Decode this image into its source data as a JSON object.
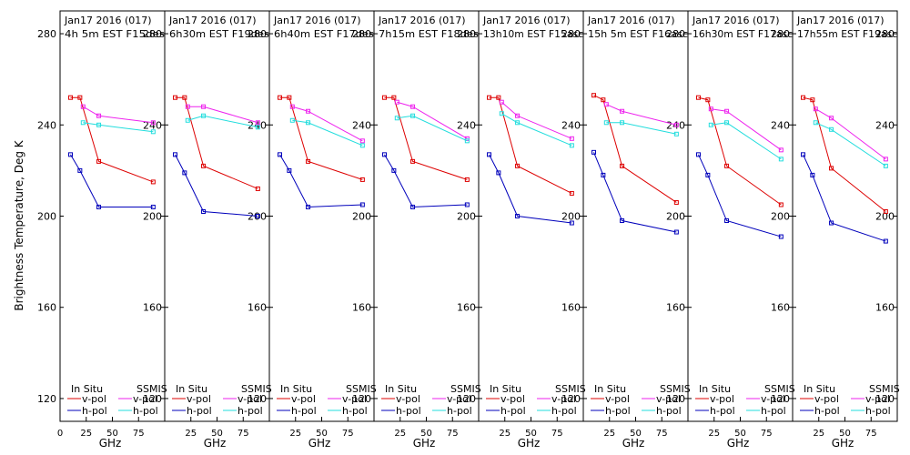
{
  "ylabel": "Brightness Temperature, Deg K",
  "xlabel": "GHz",
  "yticks": [
    120,
    160,
    200,
    240,
    280
  ],
  "xticks": [
    0,
    25,
    50,
    75,
    100
  ],
  "legend": {
    "left_title": "In Situ",
    "right_title": "SSMIS",
    "vpol": "v-pol",
    "hpol": "h-pol"
  },
  "colors": {
    "insitu_v": "#dd0000",
    "insitu_h": "#0000bb",
    "ssmis_v": "#ee22ee",
    "ssmis_h": "#22dddd"
  },
  "chart_data": [
    {
      "type": "line",
      "title": "Jan17 2016 (017)",
      "subtitle": "4h 5m EST F15des",
      "xlabel": "GHz",
      "ylabel": "Brightness Temperature, Deg K",
      "xlim": [
        0,
        100
      ],
      "ylim": [
        110,
        290
      ],
      "series": [
        {
          "name": "In Situ v-pol",
          "x": [
            10,
            19,
            37,
            89
          ],
          "y": [
            252,
            252,
            224,
            215
          ]
        },
        {
          "name": "In Situ h-pol",
          "x": [
            10,
            19,
            37,
            89
          ],
          "y": [
            227,
            220,
            204,
            204
          ]
        },
        {
          "name": "SSMIS v-pol",
          "x": [
            22,
            37,
            89
          ],
          "y": [
            248,
            244,
            241
          ]
        },
        {
          "name": "SSMIS h-pol",
          "x": [
            22,
            37,
            89
          ],
          "y": [
            241,
            240,
            237
          ]
        }
      ]
    },
    {
      "type": "line",
      "title": "Jan17 2016 (017)",
      "subtitle": "6h30m EST F19des",
      "xlabel": "GHz",
      "ylabel": "Brightness Temperature, Deg K",
      "xlim": [
        0,
        100
      ],
      "ylim": [
        110,
        290
      ],
      "series": [
        {
          "name": "In Situ v-pol",
          "x": [
            10,
            19,
            37,
            89
          ],
          "y": [
            252,
            252,
            222,
            212
          ]
        },
        {
          "name": "In Situ h-pol",
          "x": [
            10,
            19,
            37,
            89
          ],
          "y": [
            227,
            219,
            202,
            200
          ]
        },
        {
          "name": "SSMIS v-pol",
          "x": [
            22,
            37,
            89
          ],
          "y": [
            248,
            248,
            241
          ]
        },
        {
          "name": "SSMIS h-pol",
          "x": [
            22,
            37,
            89
          ],
          "y": [
            242,
            244,
            239
          ]
        }
      ]
    },
    {
      "type": "line",
      "title": "Jan17 2016 (017)",
      "subtitle": "6h40m EST F17des",
      "xlabel": "GHz",
      "ylabel": "Brightness Temperature, Deg K",
      "xlim": [
        0,
        100
      ],
      "ylim": [
        110,
        290
      ],
      "series": [
        {
          "name": "In Situ v-pol",
          "x": [
            10,
            19,
            37,
            89
          ],
          "y": [
            252,
            252,
            224,
            216
          ]
        },
        {
          "name": "In Situ h-pol",
          "x": [
            10,
            19,
            37,
            89
          ],
          "y": [
            227,
            220,
            204,
            205
          ]
        },
        {
          "name": "SSMIS v-pol",
          "x": [
            22,
            37,
            89
          ],
          "y": [
            248,
            246,
            233
          ]
        },
        {
          "name": "SSMIS h-pol",
          "x": [
            22,
            37,
            89
          ],
          "y": [
            242,
            241,
            231
          ]
        }
      ]
    },
    {
      "type": "line",
      "title": "Jan17 2016 (017)",
      "subtitle": "7h15m EST F18des",
      "xlabel": "GHz",
      "ylabel": "Brightness Temperature, Deg K",
      "xlim": [
        0,
        100
      ],
      "ylim": [
        110,
        290
      ],
      "series": [
        {
          "name": "In Situ v-pol",
          "x": [
            10,
            19,
            37,
            89
          ],
          "y": [
            252,
            252,
            224,
            216
          ]
        },
        {
          "name": "In Situ h-pol",
          "x": [
            10,
            19,
            37,
            89
          ],
          "y": [
            227,
            220,
            204,
            205
          ]
        },
        {
          "name": "SSMIS v-pol",
          "x": [
            22,
            37,
            89
          ],
          "y": [
            250,
            248,
            234
          ]
        },
        {
          "name": "SSMIS h-pol",
          "x": [
            22,
            37,
            89
          ],
          "y": [
            243,
            244,
            233
          ]
        }
      ]
    },
    {
      "type": "line",
      "title": "Jan17 2016 (017)",
      "subtitle": "13h10m EST F15asc",
      "xlabel": "GHz",
      "ylabel": "Brightness Temperature, Deg K",
      "xlim": [
        0,
        100
      ],
      "ylim": [
        110,
        290
      ],
      "series": [
        {
          "name": "In Situ v-pol",
          "x": [
            10,
            19,
            37,
            89
          ],
          "y": [
            252,
            252,
            222,
            210
          ]
        },
        {
          "name": "In Situ h-pol",
          "x": [
            10,
            19,
            37,
            89
          ],
          "y": [
            227,
            219,
            200,
            197
          ]
        },
        {
          "name": "SSMIS v-pol",
          "x": [
            22,
            37,
            89
          ],
          "y": [
            250,
            244,
            234
          ]
        },
        {
          "name": "SSMIS h-pol",
          "x": [
            22,
            37,
            89
          ],
          "y": [
            245,
            241,
            231
          ]
        }
      ]
    },
    {
      "type": "line",
      "title": "Jan17 2016 (017)",
      "subtitle": "15h 5m EST F16asc",
      "xlabel": "GHz",
      "ylabel": "Brightness Temperature, Deg K",
      "xlim": [
        0,
        100
      ],
      "ylim": [
        110,
        290
      ],
      "series": [
        {
          "name": "In Situ v-pol",
          "x": [
            10,
            19,
            37,
            89
          ],
          "y": [
            253,
            251,
            222,
            206
          ]
        },
        {
          "name": "In Situ h-pol",
          "x": [
            10,
            19,
            37,
            89
          ],
          "y": [
            228,
            218,
            198,
            193
          ]
        },
        {
          "name": "SSMIS v-pol",
          "x": [
            22,
            37,
            89
          ],
          "y": [
            249,
            246,
            240
          ]
        },
        {
          "name": "SSMIS h-pol",
          "x": [
            22,
            37,
            89
          ],
          "y": [
            241,
            241,
            236
          ]
        }
      ]
    },
    {
      "type": "line",
      "title": "Jan17 2016 (017)",
      "subtitle": "16h30m EST F17asc",
      "xlabel": "GHz",
      "ylabel": "Brightness Temperature, Deg K",
      "xlim": [
        0,
        100
      ],
      "ylim": [
        110,
        290
      ],
      "series": [
        {
          "name": "In Situ v-pol",
          "x": [
            10,
            19,
            37,
            89
          ],
          "y": [
            252,
            251,
            222,
            205
          ]
        },
        {
          "name": "In Situ h-pol",
          "x": [
            10,
            19,
            37,
            89
          ],
          "y": [
            227,
            218,
            198,
            191
          ]
        },
        {
          "name": "SSMIS v-pol",
          "x": [
            22,
            37,
            89
          ],
          "y": [
            247,
            246,
            229
          ]
        },
        {
          "name": "SSMIS h-pol",
          "x": [
            22,
            37,
            89
          ],
          "y": [
            240,
            241,
            225
          ]
        }
      ]
    },
    {
      "type": "line",
      "title": "Jan17 2016 (017)",
      "subtitle": "17h55m EST F19asc",
      "xlabel": "GHz",
      "ylabel": "Brightness Temperature, Deg K",
      "xlim": [
        0,
        100
      ],
      "ylim": [
        110,
        290
      ],
      "series": [
        {
          "name": "In Situ v-pol",
          "x": [
            10,
            19,
            37,
            89
          ],
          "y": [
            252,
            251,
            221,
            202
          ]
        },
        {
          "name": "In Situ h-pol",
          "x": [
            10,
            19,
            37,
            89
          ],
          "y": [
            227,
            218,
            197,
            189
          ]
        },
        {
          "name": "SSMIS v-pol",
          "x": [
            22,
            37,
            89
          ],
          "y": [
            247,
            243,
            225
          ]
        },
        {
          "name": "SSMIS h-pol",
          "x": [
            22,
            37,
            89
          ],
          "y": [
            241,
            238,
            222
          ]
        }
      ]
    }
  ]
}
